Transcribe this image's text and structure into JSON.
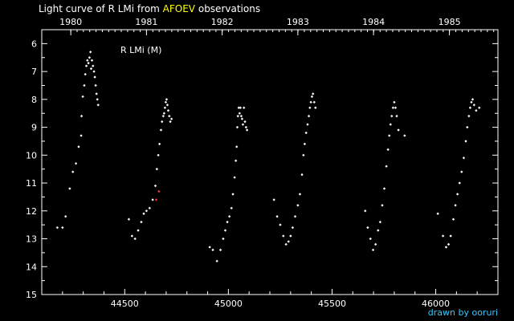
{
  "title": {
    "prefix": "Light curve of R LMi from ",
    "highlight": "AFOEV",
    "suffix": " observations"
  },
  "credit": "drawn by ooruri",
  "chart_data": {
    "type": "scatter",
    "star_label": "R LMi (M)",
    "xlim": [
      44100,
      46300
    ],
    "ylim": [
      15,
      5.5
    ],
    "y_inverted": true,
    "x_ticks": [
      44500,
      45000,
      45500,
      46000
    ],
    "x_tick_labels": [
      "44500",
      "45000",
      "45500",
      "46000"
    ],
    "y_ticks": [
      6,
      7,
      8,
      9,
      10,
      11,
      12,
      13,
      14,
      15
    ],
    "year_ticks": [
      {
        "label": "1980",
        "jd": 44240
      },
      {
        "label": "1981",
        "jd": 44605
      },
      {
        "label": "1982",
        "jd": 44970
      },
      {
        "label": "1983",
        "jd": 45335
      },
      {
        "label": "1984",
        "jd": 45700
      },
      {
        "label": "1985",
        "jd": 46066
      }
    ],
    "colors": {
      "points": "#ffffff",
      "highlight": "#ff3333",
      "axes": "#ffffff",
      "title_highlight": "#ffff00",
      "credit": "#33ccff"
    },
    "series": [
      {
        "values": [
          [
            44175,
            12.6
          ],
          [
            44200,
            12.6
          ],
          [
            44215,
            12.2
          ],
          [
            44235,
            11.2
          ],
          [
            44250,
            10.6
          ],
          [
            44265,
            10.3
          ],
          [
            44278,
            9.7
          ],
          [
            44290,
            9.3
          ],
          [
            44292,
            8.6
          ],
          [
            44298,
            7.9
          ],
          [
            44305,
            7.5
          ],
          [
            44310,
            7.1
          ],
          [
            44315,
            6.8
          ],
          [
            44320,
            6.6
          ],
          [
            44325,
            6.7
          ],
          [
            44330,
            6.5
          ],
          [
            44335,
            6.3
          ],
          [
            44338,
            6.9
          ],
          [
            44342,
            6.6
          ],
          [
            44347,
            6.8
          ],
          [
            44352,
            7.0
          ],
          [
            44356,
            7.2
          ],
          [
            44360,
            7.5
          ],
          [
            44364,
            7.8
          ],
          [
            44368,
            8.0
          ],
          [
            44372,
            8.2
          ],
          [
            44520,
            12.3
          ],
          [
            44535,
            12.9
          ],
          [
            44550,
            13.0
          ],
          [
            44565,
            12.7
          ],
          [
            44580,
            12.4
          ],
          [
            44592,
            12.1
          ],
          [
            44605,
            12.0
          ],
          [
            44620,
            11.9
          ],
          [
            44635,
            11.6
          ],
          [
            44648,
            11.1
          ],
          [
            44655,
            10.5
          ],
          [
            44662,
            10.0
          ],
          [
            44668,
            9.6
          ],
          [
            44675,
            9.1
          ],
          [
            44680,
            8.8
          ],
          [
            44686,
            8.6
          ],
          [
            44690,
            8.5
          ],
          [
            44694,
            8.3
          ],
          [
            44698,
            8.1
          ],
          [
            44702,
            8.0
          ],
          [
            44706,
            8.2
          ],
          [
            44710,
            8.4
          ],
          [
            44715,
            8.6
          ],
          [
            44720,
            8.8
          ],
          [
            44726,
            8.7
          ],
          [
            44910,
            13.3
          ],
          [
            44925,
            13.4
          ],
          [
            44945,
            13.8
          ],
          [
            44962,
            13.4
          ],
          [
            44975,
            13.0
          ],
          [
            44985,
            12.7
          ],
          [
            44995,
            12.4
          ],
          [
            45005,
            12.2
          ],
          [
            45015,
            11.9
          ],
          [
            45022,
            11.4
          ],
          [
            45030,
            10.8
          ],
          [
            45036,
            10.2
          ],
          [
            45040,
            9.7
          ],
          [
            45043,
            9.0
          ],
          [
            45046,
            8.6
          ],
          [
            45050,
            8.3
          ],
          [
            45054,
            8.5
          ],
          [
            45058,
            8.3
          ],
          [
            45062,
            8.6
          ],
          [
            45066,
            8.7
          ],
          [
            45070,
            8.9
          ],
          [
            45075,
            8.3
          ],
          [
            45080,
            8.8
          ],
          [
            45085,
            9.0
          ],
          [
            45090,
            9.1
          ],
          [
            45220,
            11.6
          ],
          [
            45235,
            12.2
          ],
          [
            45250,
            12.5
          ],
          [
            45265,
            12.9
          ],
          [
            45278,
            13.2
          ],
          [
            45290,
            13.1
          ],
          [
            45300,
            12.9
          ],
          [
            45310,
            12.6
          ],
          [
            45322,
            12.2
          ],
          [
            45335,
            11.8
          ],
          [
            45345,
            11.4
          ],
          [
            45355,
            10.7
          ],
          [
            45362,
            10.0
          ],
          [
            45368,
            9.6
          ],
          [
            45375,
            9.2
          ],
          [
            45382,
            8.9
          ],
          [
            45388,
            8.6
          ],
          [
            45393,
            8.3
          ],
          [
            45398,
            8.1
          ],
          [
            45403,
            7.9
          ],
          [
            45408,
            7.8
          ],
          [
            45414,
            8.1
          ],
          [
            45420,
            8.3
          ],
          [
            45660,
            12.0
          ],
          [
            45672,
            12.6
          ],
          [
            45685,
            13.0
          ],
          [
            45698,
            13.4
          ],
          [
            45710,
            13.2
          ],
          [
            45722,
            12.7
          ],
          [
            45732,
            12.4
          ],
          [
            45742,
            11.8
          ],
          [
            45752,
            11.2
          ],
          [
            45762,
            10.4
          ],
          [
            45770,
            9.8
          ],
          [
            45776,
            9.3
          ],
          [
            45782,
            8.9
          ],
          [
            45788,
            8.6
          ],
          [
            45794,
            8.3
          ],
          [
            45800,
            8.1
          ],
          [
            45806,
            8.3
          ],
          [
            45812,
            8.6
          ],
          [
            45820,
            9.1
          ],
          [
            45850,
            9.3
          ],
          [
            46010,
            12.1
          ],
          [
            46035,
            12.9
          ],
          [
            46050,
            13.3
          ],
          [
            46062,
            13.2
          ],
          [
            46072,
            12.9
          ],
          [
            46085,
            12.3
          ],
          [
            46095,
            11.8
          ],
          [
            46105,
            11.4
          ],
          [
            46115,
            11.0
          ],
          [
            46125,
            10.6
          ],
          [
            46135,
            10.1
          ],
          [
            46145,
            9.5
          ],
          [
            46152,
            9.0
          ],
          [
            46160,
            8.6
          ],
          [
            46166,
            8.3
          ],
          [
            46172,
            8.1
          ],
          [
            46178,
            8.0
          ],
          [
            46185,
            8.2
          ],
          [
            46195,
            8.4
          ],
          [
            46210,
            8.3
          ]
        ]
      },
      {
        "values": [
          [
            44652,
            11.6
          ],
          [
            44665,
            11.3
          ]
        ]
      }
    ]
  }
}
